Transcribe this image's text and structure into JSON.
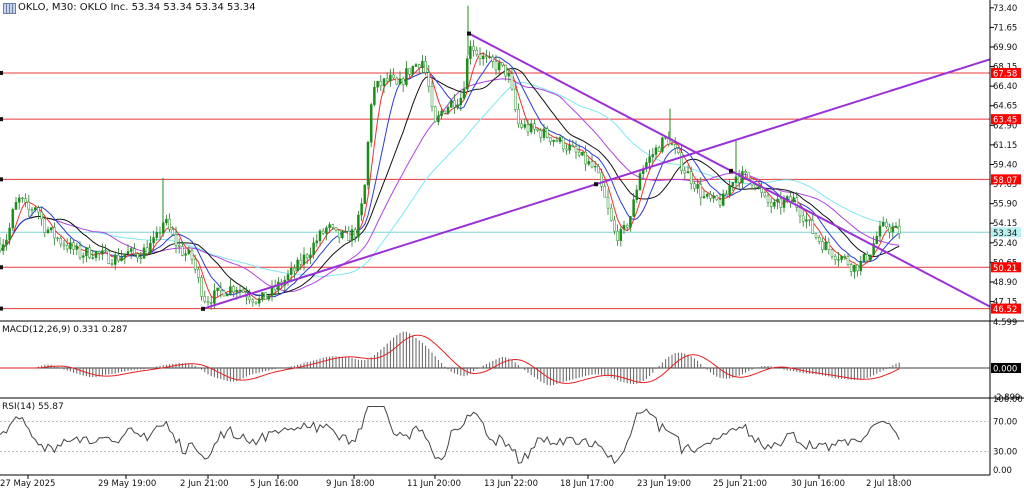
{
  "header": {
    "symbol_line": "OKLO, M30:  OKLO Inc.  53.34 53.34 53.34 53.34",
    "icon": "symbol-grid-icon"
  },
  "macd": {
    "title": "MACD(12,26,9) 0.331 0.287",
    "ticks": [
      "4.599",
      "0.000",
      "-2.899"
    ],
    "current": "0.000"
  },
  "rsi": {
    "title": "RSI(14) 55.87",
    "ticks": [
      "100.00",
      "70.00",
      "30.00",
      "0.00"
    ]
  },
  "colors": {
    "hline": "#e8383d",
    "trend": "#9b30d9",
    "cyan": "#7fe8f0",
    "blue": "#2b3bd9",
    "black": "#111111",
    "purple": "#b144e0",
    "red": "#ef3030",
    "macd_hist": "#606060",
    "signal": "#e82020",
    "rsi": "#444444",
    "tag_bg": "#ff0000",
    "price_tag": "#b8f0f0"
  },
  "chart_data": {
    "type": "candlestick",
    "title": "OKLO, M30: OKLO Inc.",
    "x_tick_labels": [
      "27 May 2025",
      "29 May 19:00",
      "2 Jun 21:00",
      "5 Jun 16:00",
      "9 Jun 18:00",
      "11 Jun 20:00",
      "13 Jun 22:00",
      "18 Jun 17:00",
      "23 Jun 19:00",
      "25 Jun 21:00",
      "30 Jun 16:00",
      "2 Jul 18:00"
    ],
    "y_tick_labels": [
      "73.40",
      "71.65",
      "69.90",
      "68.15",
      "66.40",
      "64.65",
      "62.90",
      "61.15",
      "59.40",
      "57.65",
      "55.90",
      "54.15",
      "52.40",
      "50.65",
      "48.90",
      "47.15"
    ],
    "ylim": [
      45.5,
      74.1
    ],
    "current_price": "53.34",
    "horizontal_levels": [
      "67.58",
      "63.45",
      "58.07",
      "50.21",
      "46.52"
    ],
    "close_path": [
      {
        "t": 0,
        "c": 52.3
      },
      {
        "t": 8,
        "c": 53.0
      },
      {
        "t": 14,
        "c": 55.5
      },
      {
        "t": 20,
        "c": 56.3
      },
      {
        "t": 28,
        "c": 55.2
      },
      {
        "t": 36,
        "c": 55.8
      },
      {
        "t": 44,
        "c": 53.9
      },
      {
        "t": 52,
        "c": 53.2
      },
      {
        "t": 60,
        "c": 52.6
      },
      {
        "t": 70,
        "c": 52.0
      },
      {
        "t": 80,
        "c": 51.4
      },
      {
        "t": 92,
        "c": 51.6
      },
      {
        "t": 104,
        "c": 51.2
      },
      {
        "t": 116,
        "c": 51.0
      },
      {
        "t": 126,
        "c": 51.5
      },
      {
        "t": 136,
        "c": 51.3
      },
      {
        "t": 146,
        "c": 51.8
      },
      {
        "t": 156,
        "c": 52.6
      },
      {
        "t": 164,
        "c": 54.5
      },
      {
        "t": 172,
        "c": 53.0
      },
      {
        "t": 180,
        "c": 51.8
      },
      {
        "t": 192,
        "c": 51.0
      },
      {
        "t": 200,
        "c": 48.5
      },
      {
        "t": 206,
        "c": 47.3
      },
      {
        "t": 214,
        "c": 47.6
      },
      {
        "t": 224,
        "c": 48.2
      },
      {
        "t": 236,
        "c": 48.5
      },
      {
        "t": 248,
        "c": 47.8
      },
      {
        "t": 260,
        "c": 47.2
      },
      {
        "t": 272,
        "c": 48.0
      },
      {
        "t": 284,
        "c": 49.0
      },
      {
        "t": 296,
        "c": 50.1
      },
      {
        "t": 308,
        "c": 51.5
      },
      {
        "t": 318,
        "c": 52.8
      },
      {
        "t": 328,
        "c": 53.8
      },
      {
        "t": 336,
        "c": 53.0
      },
      {
        "t": 346,
        "c": 52.9
      },
      {
        "t": 356,
        "c": 53.4
      },
      {
        "t": 364,
        "c": 56.5
      },
      {
        "t": 372,
        "c": 66.0
      },
      {
        "t": 380,
        "c": 66.5
      },
      {
        "t": 390,
        "c": 67.0
      },
      {
        "t": 398,
        "c": 66.2
      },
      {
        "t": 406,
        "c": 67.5
      },
      {
        "t": 414,
        "c": 68.2
      },
      {
        "t": 422,
        "c": 68.8
      },
      {
        "t": 428,
        "c": 66.8
      },
      {
        "t": 434,
        "c": 62.6
      },
      {
        "t": 442,
        "c": 64.2
      },
      {
        "t": 452,
        "c": 65.0
      },
      {
        "t": 462,
        "c": 65.5
      },
      {
        "t": 470,
        "c": 70.4
      },
      {
        "t": 478,
        "c": 69.3
      },
      {
        "t": 488,
        "c": 68.5
      },
      {
        "t": 498,
        "c": 68.2
      },
      {
        "t": 508,
        "c": 67.5
      },
      {
        "t": 518,
        "c": 63.0
      },
      {
        "t": 528,
        "c": 62.6
      },
      {
        "t": 540,
        "c": 62.3
      },
      {
        "t": 552,
        "c": 61.8
      },
      {
        "t": 564,
        "c": 61.2
      },
      {
        "t": 574,
        "c": 60.5
      },
      {
        "t": 584,
        "c": 59.8
      },
      {
        "t": 596,
        "c": 58.8
      },
      {
        "t": 606,
        "c": 55.9
      },
      {
        "t": 614,
        "c": 53.3
      },
      {
        "t": 622,
        "c": 53.0
      },
      {
        "t": 632,
        "c": 55.2
      },
      {
        "t": 640,
        "c": 58.8
      },
      {
        "t": 650,
        "c": 60.0
      },
      {
        "t": 660,
        "c": 61.2
      },
      {
        "t": 668,
        "c": 61.8
      },
      {
        "t": 676,
        "c": 60.3
      },
      {
        "t": 684,
        "c": 59.0
      },
      {
        "t": 694,
        "c": 57.8
      },
      {
        "t": 704,
        "c": 56.4
      },
      {
        "t": 714,
        "c": 56.0
      },
      {
        "t": 724,
        "c": 56.2
      },
      {
        "t": 734,
        "c": 58.4
      },
      {
        "t": 744,
        "c": 58.3
      },
      {
        "t": 754,
        "c": 58.0
      },
      {
        "t": 764,
        "c": 56.2
      },
      {
        "t": 774,
        "c": 55.6
      },
      {
        "t": 784,
        "c": 56.0
      },
      {
        "t": 794,
        "c": 56.2
      },
      {
        "t": 804,
        "c": 54.8
      },
      {
        "t": 814,
        "c": 53.2
      },
      {
        "t": 824,
        "c": 52.2
      },
      {
        "t": 834,
        "c": 51.5
      },
      {
        "t": 844,
        "c": 51.0
      },
      {
        "t": 854,
        "c": 50.2
      },
      {
        "t": 862,
        "c": 50.6
      },
      {
        "t": 870,
        "c": 51.6
      },
      {
        "t": 878,
        "c": 53.2
      },
      {
        "t": 886,
        "c": 54.0
      },
      {
        "t": 894,
        "c": 53.5
      },
      {
        "t": 902,
        "c": 53.34
      }
    ],
    "spikes": [
      {
        "t": 163,
        "high": 58.2
      },
      {
        "t": 468,
        "high": 73.6
      },
      {
        "t": 670,
        "high": 64.4
      },
      {
        "t": 736,
        "high": 61.5
      }
    ],
    "trend_lines": [
      {
        "name": "uptrend",
        "from": {
          "t": 203,
          "p": 46.5
        },
        "to": {
          "t": 990,
          "p": 68.8
        },
        "marker_t": 596
      },
      {
        "name": "downtrend",
        "from": {
          "t": 469,
          "p": 71.1
        },
        "to": {
          "t": 990,
          "p": 46.7
        },
        "marker_t": 731
      }
    ]
  }
}
